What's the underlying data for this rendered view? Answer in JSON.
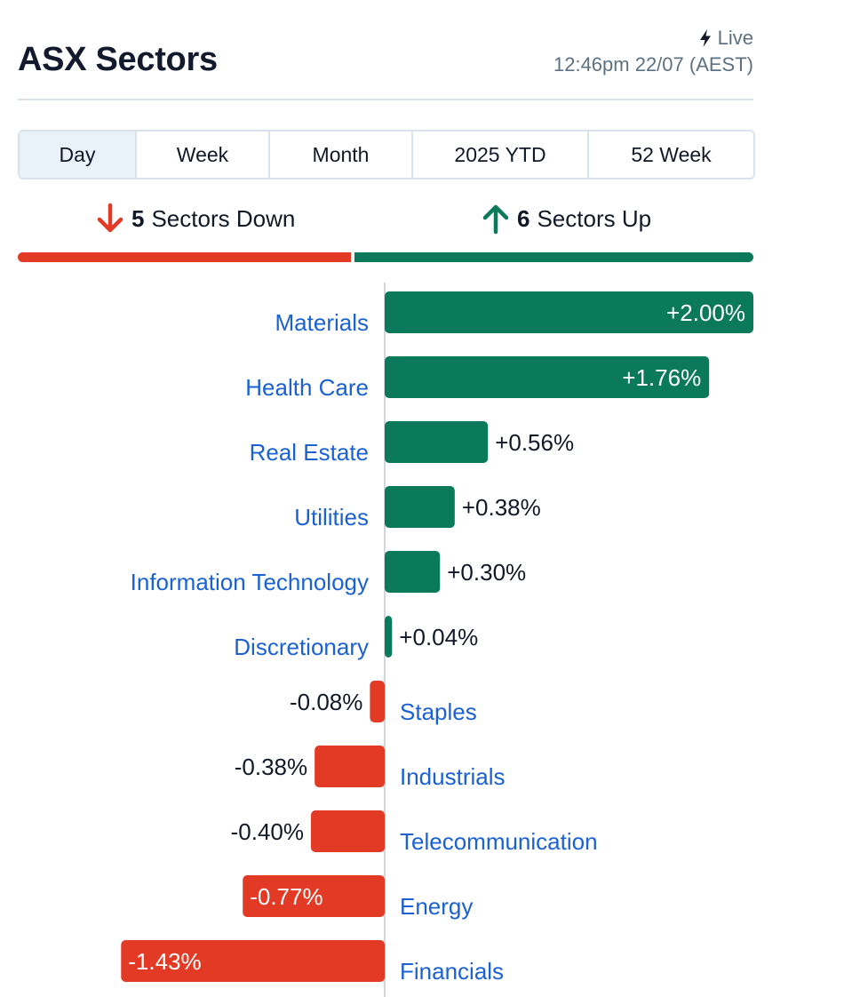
{
  "header": {
    "title": "ASX Sectors",
    "live_label": "Live",
    "timestamp": "12:46pm 22/07 (AEST)"
  },
  "tabs": [
    {
      "label": "Day",
      "active": true
    },
    {
      "label": "Week",
      "active": false
    },
    {
      "label": "Month",
      "active": false
    },
    {
      "label": "2025 YTD",
      "active": false
    },
    {
      "label": "52 Week",
      "active": false
    }
  ],
  "summary": {
    "down_count": "5",
    "down_label": "Sectors Down",
    "up_count": "6",
    "up_label": "Sectors Up"
  },
  "colors": {
    "up": "#0b7a5a",
    "down": "#e33a26",
    "link": "#1a61d3"
  },
  "chart_data": {
    "type": "bar",
    "orientation": "horizontal",
    "categories": [
      "Materials",
      "Health Care",
      "Real Estate",
      "Utilities",
      "Information Technology",
      "Discretionary",
      "Staples",
      "Industrials",
      "Telecommunication",
      "Energy",
      "Financials"
    ],
    "values": [
      2.0,
      1.76,
      0.56,
      0.38,
      0.3,
      0.04,
      -0.08,
      -0.38,
      -0.4,
      -0.77,
      -1.43
    ],
    "value_labels": [
      "+2.00%",
      "+1.76%",
      "+0.56%",
      "+0.38%",
      "+0.30%",
      "+0.04%",
      "-0.08%",
      "-0.38%",
      "-0.40%",
      "-0.77%",
      "-1.43%"
    ],
    "xlim": [
      -2.0,
      2.0
    ],
    "grid": false
  }
}
